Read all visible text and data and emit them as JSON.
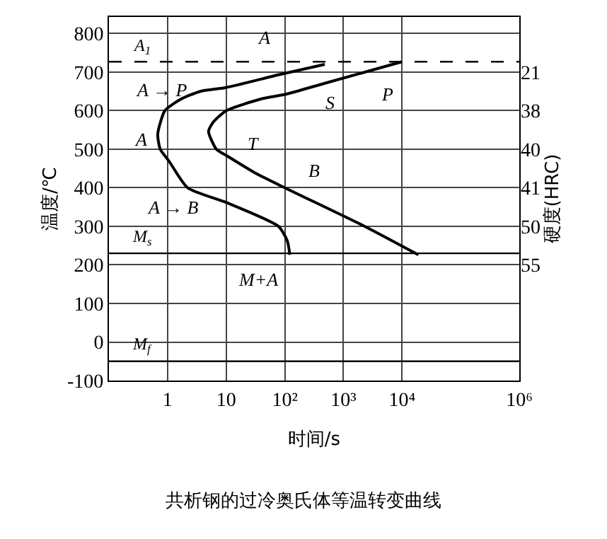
{
  "chart_data": {
    "type": "line",
    "title": "共析钢的过冷奥氏体等温转变曲线",
    "xlabel": "时间/s",
    "ylabel": "温度/℃",
    "y2label": "硬度(HRC)",
    "log": "x",
    "xlim": [
      0.1,
      1000000
    ],
    "xticks": [
      1,
      10,
      {
        "value": 100,
        "label": "10²"
      },
      {
        "value": 1000,
        "label": "10³"
      },
      {
        "value": 10000,
        "label": "10⁴"
      },
      {
        "value": 1000000,
        "label": "10⁶"
      }
    ],
    "ylim": [
      -100,
      843
    ],
    "yticks": [
      -100,
      0,
      100,
      200,
      300,
      400,
      500,
      600,
      700,
      800
    ],
    "y2_categories": [
      null,
      "21",
      "38",
      "40",
      "41",
      "50",
      "55",
      null,
      null,
      null
    ],
    "grid": true,
    "marker": "none",
    "line_style": "solid",
    "series": [
      {
        "color": "#000000",
        "x": [
          480,
          78,
          10,
          3.6,
          1.7,
          0.9,
          0.68,
          0.75,
          1.05,
          2.2,
          10,
          78,
          110,
          122
        ],
        "values": [
          720,
          693,
          660,
          650,
          630,
          600,
          539,
          500,
          470,
          400,
          362,
          300,
          263,
          226
        ]
      },
      {
        "color": "#000000",
        "x": [
          10000,
          480,
          100,
          41,
          10,
          6,
          5,
          6.8,
          10,
          30,
          100,
          2300,
          19000
        ],
        "values": [
          727,
          671,
          642,
          631,
          600,
          570,
          546,
          500,
          484,
          440,
          400,
          300,
          226
        ]
      }
    ],
    "ref_lines": [
      {
        "axis": "y",
        "value": 727,
        "label": "A$_{1}$",
        "color": "#000000",
        "line_style": "dashed"
      },
      {
        "axis": "y",
        "value": 230,
        "label": "M$_{s}$",
        "color": "#000000",
        "line_style": "solid"
      },
      {
        "axis": "y",
        "value": -50,
        "label": "M$_{f}$",
        "color": "#000000",
        "line_style": "solid"
      }
    ],
    "annotations": [
      "A",
      "A → P",
      "A",
      "T",
      "S",
      "P",
      "B",
      "A → B",
      "M+A"
    ]
  }
}
